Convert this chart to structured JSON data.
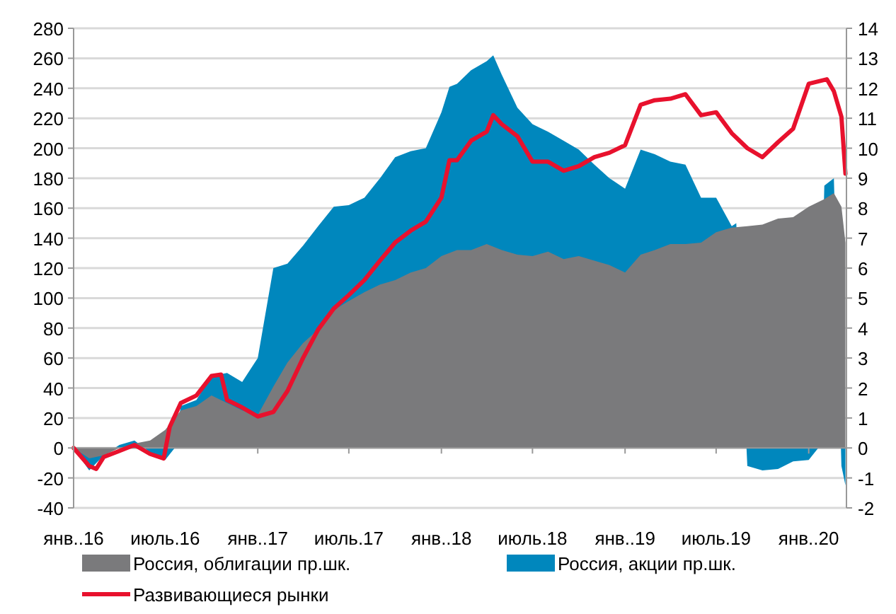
{
  "chart_data": {
    "type": "area",
    "xlim": [
      "2016-01-01",
      "2020-03-16"
    ],
    "xticks": [
      {
        "value": "2016-01-01",
        "label": "янв..16"
      },
      {
        "value": "2016-07-01",
        "label": "июль.16"
      },
      {
        "value": "2017-01-01",
        "label": "янв..17"
      },
      {
        "value": "2017-07-01",
        "label": "июль.17"
      },
      {
        "value": "2018-01-01",
        "label": "янв..18"
      },
      {
        "value": "2018-07-01",
        "label": "июль.18"
      },
      {
        "value": "2019-01-01",
        "label": "янв..19"
      },
      {
        "value": "2019-07-01",
        "label": "июль.19"
      },
      {
        "value": "2020-01-01",
        "label": "янв..20"
      }
    ],
    "ylim": [
      -40,
      280
    ],
    "yticks": [
      -40,
      -20,
      0,
      20,
      40,
      60,
      80,
      100,
      120,
      140,
      160,
      180,
      200,
      220,
      240,
      260,
      280
    ],
    "y2lim": [
      -2,
      14
    ],
    "y2ticks": [
      -2,
      -1,
      0,
      1,
      2,
      3,
      4,
      5,
      6,
      7,
      8,
      9,
      10,
      11,
      12,
      13,
      14
    ],
    "grid": "y",
    "legend": "bottom",
    "series": [
      {
        "name": "Россия, облигации пр.шк.",
        "color": "#7a7a7c",
        "x": [
          "2016-01-01",
          "2016-02-01",
          "2016-03-01",
          "2016-04-01",
          "2016-05-01",
          "2016-06-01",
          "2016-07-01",
          "2016-08-01",
          "2016-09-01",
          "2016-10-01",
          "2016-11-01",
          "2016-12-01",
          "2017-01-01",
          "2017-02-01",
          "2017-03-01",
          "2017-04-01",
          "2017-05-01",
          "2017-06-01",
          "2017-07-01",
          "2017-08-01",
          "2017-09-01",
          "2017-10-01",
          "2017-11-01",
          "2017-12-01",
          "2018-01-01",
          "2018-02-01",
          "2018-03-01",
          "2018-04-01",
          "2018-05-01",
          "2018-06-01",
          "2018-07-01",
          "2018-08-01",
          "2018-09-01",
          "2018-10-01",
          "2018-11-01",
          "2018-12-01",
          "2019-01-01",
          "2019-02-01",
          "2019-03-01",
          "2019-04-01",
          "2019-05-01",
          "2019-06-01",
          "2019-07-01",
          "2019-08-01",
          "2019-09-01",
          "2019-10-01",
          "2019-11-01",
          "2019-12-01",
          "2020-01-01",
          "2020-02-01",
          "2020-02-20",
          "2020-03-06",
          "2020-03-14"
        ],
        "values": [
          0,
          -7,
          -5,
          0,
          3,
          5,
          12,
          25,
          28,
          35,
          30,
          25,
          22,
          41,
          57,
          70,
          79,
          92,
          98,
          104,
          109,
          112,
          117,
          120,
          128,
          132,
          132,
          136,
          132,
          129,
          128,
          131,
          126,
          128,
          125,
          122,
          117,
          129,
          132,
          136,
          136,
          137,
          144,
          147,
          148,
          149,
          153,
          154,
          161,
          166,
          170,
          161,
          137
        ]
      },
      {
        "name": "Россия, акции пр.шк.",
        "color": "#0087bd",
        "x": [
          "2016-01-01",
          "2016-02-01",
          "2016-03-01",
          "2016-04-01",
          "2016-05-01",
          "2016-06-01",
          "2016-07-01",
          "2016-07-20",
          "2016-08-01",
          "2016-09-01",
          "2016-10-01",
          "2016-11-01",
          "2016-12-01",
          "2017-01-01",
          "2017-02-01",
          "2017-03-01",
          "2017-04-01",
          "2017-05-01",
          "2017-06-01",
          "2017-07-01",
          "2017-08-01",
          "2017-09-01",
          "2017-10-01",
          "2017-11-01",
          "2017-12-01",
          "2018-01-01",
          "2018-01-17",
          "2018-02-01",
          "2018-03-01",
          "2018-04-01",
          "2018-04-14",
          "2018-05-01",
          "2018-06-01",
          "2018-07-01",
          "2018-08-01",
          "2018-09-01",
          "2018-10-01",
          "2018-11-01",
          "2018-12-01",
          "2019-01-01",
          "2019-02-01",
          "2019-03-01",
          "2019-04-01",
          "2019-05-01",
          "2019-06-01",
          "2019-07-01",
          "2019-08-01",
          "2019-08-10",
          "2019-09-01",
          "2019-10-01",
          "2019-11-01",
          "2019-12-01",
          "2020-01-01",
          "2020-01-20",
          "2020-02-01",
          "2020-02-20",
          "2020-03-06",
          "2020-03-14"
        ],
        "values": [
          0,
          -15,
          -5,
          2,
          5,
          -3,
          -8,
          0,
          28,
          32,
          48,
          50,
          44,
          60,
          120,
          123,
          135,
          148,
          161,
          162,
          167,
          180,
          194,
          198,
          200,
          224,
          241,
          243,
          252,
          258,
          262,
          249,
          227,
          216,
          211,
          205,
          199,
          189,
          180,
          173,
          199,
          196,
          191,
          189,
          167,
          167,
          148,
          150,
          -12,
          -15,
          -14,
          -9,
          -8,
          0,
          175,
          180,
          -12,
          -25
        ]
      },
      {
        "name": "Развивающиеся рынки",
        "type": "line",
        "axis": "y2",
        "color": "#e8112d",
        "x": [
          "2016-01-01",
          "2016-02-01",
          "2016-02-15",
          "2016-03-01",
          "2016-04-01",
          "2016-05-01",
          "2016-06-01",
          "2016-06-28",
          "2016-07-10",
          "2016-08-01",
          "2016-09-01",
          "2016-10-01",
          "2016-10-20",
          "2016-11-01",
          "2016-12-01",
          "2017-01-01",
          "2017-02-01",
          "2017-03-01",
          "2017-04-01",
          "2017-05-01",
          "2017-06-01",
          "2017-07-01",
          "2017-08-01",
          "2017-09-01",
          "2017-10-01",
          "2017-11-01",
          "2017-12-01",
          "2018-01-01",
          "2018-01-17",
          "2018-02-01",
          "2018-03-01",
          "2018-04-01",
          "2018-04-14",
          "2018-05-01",
          "2018-06-01",
          "2018-07-01",
          "2018-08-01",
          "2018-09-01",
          "2018-10-01",
          "2018-11-01",
          "2018-12-01",
          "2019-01-01",
          "2019-02-01",
          "2019-03-01",
          "2019-04-01",
          "2019-05-01",
          "2019-06-01",
          "2019-07-01",
          "2019-08-01",
          "2019-09-01",
          "2019-10-01",
          "2019-11-01",
          "2019-12-01",
          "2020-01-01",
          "2020-02-06",
          "2020-02-20",
          "2020-03-06",
          "2020-03-14"
        ],
        "values": [
          0,
          -0.6,
          -0.7,
          -0.3,
          -0.1,
          0.1,
          -0.2,
          -0.35,
          0.7,
          1.5,
          1.75,
          2.4,
          2.45,
          1.6,
          1.35,
          1.05,
          1.2,
          1.9,
          3.0,
          3.95,
          4.65,
          5.1,
          5.6,
          6.25,
          6.85,
          7.25,
          7.55,
          8.35,
          9.6,
          9.6,
          10.25,
          10.55,
          11.1,
          10.8,
          10.4,
          9.55,
          9.55,
          9.25,
          9.4,
          9.7,
          9.85,
          10.1,
          11.45,
          11.6,
          11.65,
          11.8,
          11.1,
          11.2,
          10.5,
          10.0,
          9.7,
          10.2,
          10.65,
          12.15,
          12.3,
          11.9,
          11.05,
          9.15
        ]
      }
    ]
  }
}
